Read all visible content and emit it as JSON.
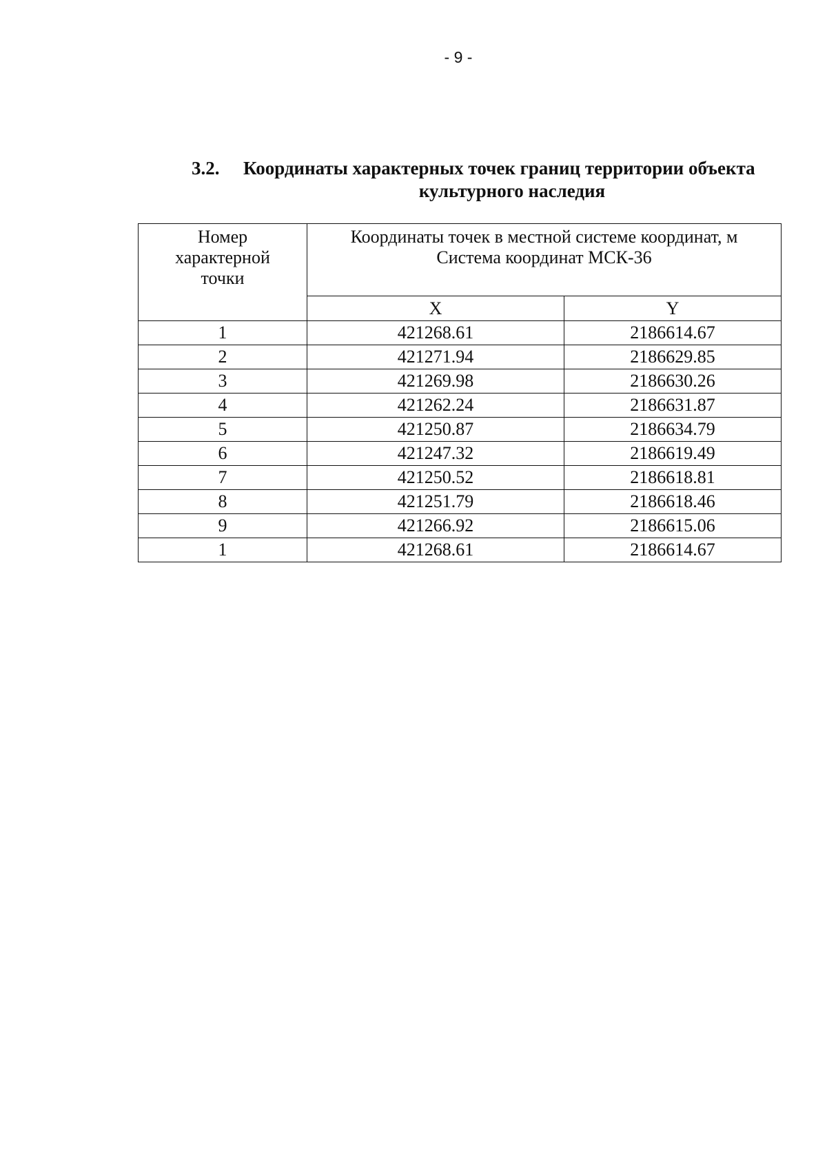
{
  "page_number": "- 9 -",
  "section": {
    "number": "3.2.",
    "title_line1": "Координаты характерных точек границ территории объекта",
    "title_line2": "культурного наследия"
  },
  "table": {
    "header_point": [
      "Номер",
      "характерной",
      "точки"
    ],
    "header_coords": [
      "Координаты точек в местной системе координат, м",
      "Система координат МСК-36"
    ],
    "col_x": "X",
    "col_y": "Y",
    "rows": [
      {
        "n": "1",
        "x": "421268.61",
        "y": "2186614.67"
      },
      {
        "n": "2",
        "x": "421271.94",
        "y": "2186629.85"
      },
      {
        "n": "3",
        "x": "421269.98",
        "y": "2186630.26"
      },
      {
        "n": "4",
        "x": "421262.24",
        "y": "2186631.87"
      },
      {
        "n": "5",
        "x": "421250.87",
        "y": "2186634.79"
      },
      {
        "n": "6",
        "x": "421247.32",
        "y": "2186619.49"
      },
      {
        "n": "7",
        "x": "421250.52",
        "y": "2186618.81"
      },
      {
        "n": "8",
        "x": "421251.79",
        "y": "2186618.46"
      },
      {
        "n": "9",
        "x": "421266.92",
        "y": "2186615.06"
      },
      {
        "n": "1",
        "x": "421268.61",
        "y": "2186614.67"
      }
    ]
  }
}
